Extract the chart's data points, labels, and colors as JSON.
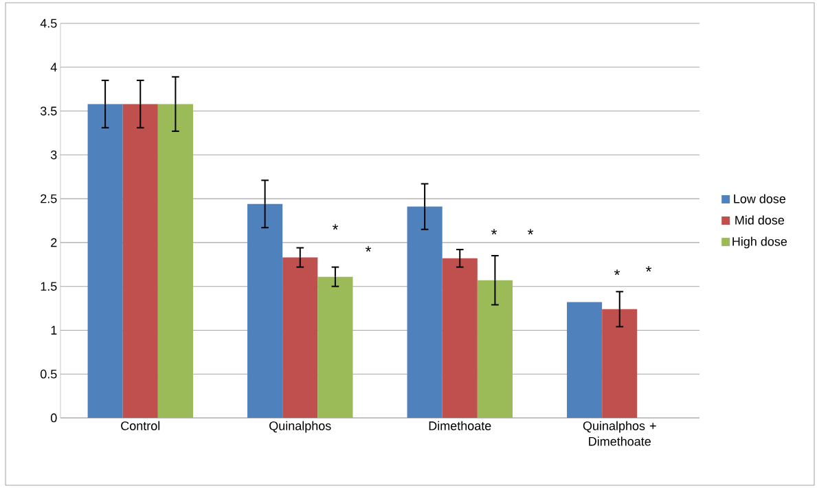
{
  "chart_data": {
    "type": "bar",
    "categories": [
      "Control",
      "Quinalphos",
      "Dimethoate",
      "Quinalphos + Dimethoate"
    ],
    "series": [
      {
        "name": "Low dose",
        "color": "#4f81bd",
        "values": [
          3.58,
          2.44,
          2.41,
          1.32
        ],
        "errors": [
          0.27,
          0.27,
          0.26,
          null
        ]
      },
      {
        "name": "Mid dose",
        "color": "#c0504d",
        "values": [
          3.58,
          1.83,
          1.82,
          1.24
        ],
        "errors": [
          0.27,
          0.11,
          0.1,
          0.2
        ]
      },
      {
        "name": "High dose",
        "color": "#9bbb59",
        "values": [
          3.58,
          1.61,
          1.57,
          null
        ],
        "errors": [
          0.31,
          0.11,
          0.28,
          null
        ]
      }
    ],
    "ylim": [
      0,
      4.5
    ],
    "yticks": [
      0,
      0.5,
      1,
      1.5,
      2,
      2.5,
      3,
      3.5,
      4,
      4.5
    ],
    "grid": "y",
    "legend": "right",
    "annotations": [
      "*",
      "*",
      "*",
      "*",
      "*",
      "*"
    ]
  }
}
